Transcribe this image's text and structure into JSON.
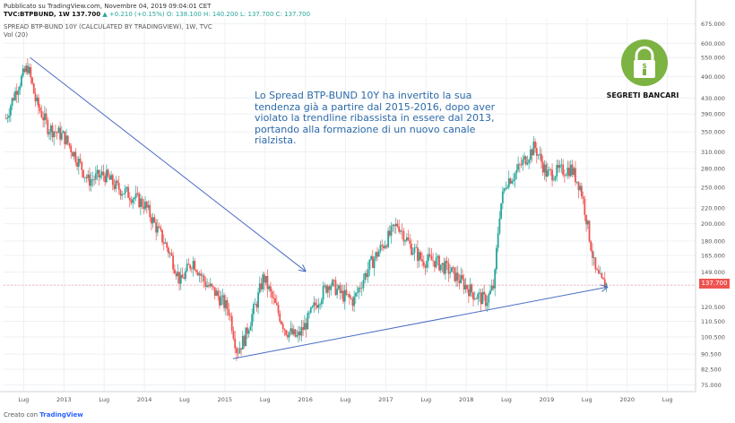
{
  "header": {
    "published": "Pubblicato su TradingView.com, Novembre 04, 2019 09:04:01 CET",
    "symbol_line_prefix": "TVC:BTPBUND, 1W 137.700",
    "change": "▲ +0.210 (+0.15%)",
    "ohlc": "O: 138.100 H: 140.200 L: 137.700 C: 137.700",
    "study_title": "SPREAD BTP-BUND 10Y (CALCULATED BY TRADINGVIEW), 1W, TVC",
    "volume_label": "Vol (20)"
  },
  "annotation": {
    "text": "Lo Spread BTP-BUND 10Y ha invertito la sua tendenza già a partire dal 2015-2016, dopo aver violato la trendline ribassista in essere dal 2013, portando alla formazione di un nuovo canale rialzista."
  },
  "brand": {
    "name": "SEGRETI BANCARI",
    "logo_icon": "padlock-dollar-icon",
    "logo_color": "#7cb342"
  },
  "footer": {
    "prefix": "Creato con",
    "brand": "TradingView"
  },
  "last_price": "137.700",
  "colors": {
    "up": "#26a69a",
    "down": "#ef5350",
    "trendline": "#4a6cc4",
    "grid": "#eef0f3",
    "axis_text": "#555555"
  },
  "chart_data": {
    "type": "candlestick",
    "scale": "log",
    "ylim": [
      72,
      700
    ],
    "y_ticks": [
      "75.000",
      "82.500",
      "90.500",
      "100.500",
      "110.500",
      "120.500",
      "137.700",
      "149.000",
      "165.000",
      "180.000",
      "200.000",
      "220.000",
      "250.000",
      "280.000",
      "310.000",
      "350.000",
      "390.000",
      "430.000",
      "490.000",
      "550.000",
      "600.000",
      "675.000"
    ],
    "x_ticks": [
      "Lug",
      "2013",
      "Lug",
      "2014",
      "Lug",
      "2015",
      "Lug",
      "2016",
      "Lug",
      "2017",
      "Lug",
      "2018",
      "Lug",
      "2019",
      "Lug",
      "2020",
      "Lug"
    ],
    "x_range": [
      2012.25,
      2020.85
    ],
    "x_tick_values": [
      2012.5,
      2013.0,
      2013.5,
      2014.0,
      2014.5,
      2015.0,
      2015.5,
      2016.0,
      2016.5,
      2017.0,
      2017.5,
      2018.0,
      2018.5,
      2019.0,
      2019.5,
      2020.0,
      2020.5
    ],
    "price_path": [
      [
        2012.28,
        380
      ],
      [
        2012.42,
        460
      ],
      [
        2012.55,
        520
      ],
      [
        2012.65,
        420
      ],
      [
        2012.8,
        360
      ],
      [
        2013.0,
        340
      ],
      [
        2013.15,
        300
      ],
      [
        2013.3,
        260
      ],
      [
        2013.5,
        270
      ],
      [
        2013.65,
        250
      ],
      [
        2013.8,
        240
      ],
      [
        2014.0,
        225
      ],
      [
        2014.15,
        195
      ],
      [
        2014.3,
        170
      ],
      [
        2014.45,
        140
      ],
      [
        2014.6,
        160
      ],
      [
        2014.75,
        140
      ],
      [
        2014.9,
        130
      ],
      [
        2015.05,
        118
      ],
      [
        2015.15,
        92
      ],
      [
        2015.25,
        100
      ],
      [
        2015.4,
        125
      ],
      [
        2015.48,
        145
      ],
      [
        2015.6,
        125
      ],
      [
        2015.75,
        105
      ],
      [
        2015.9,
        100
      ],
      [
        2016.0,
        108
      ],
      [
        2016.15,
        125
      ],
      [
        2016.3,
        140
      ],
      [
        2016.45,
        130
      ],
      [
        2016.6,
        125
      ],
      [
        2016.8,
        155
      ],
      [
        2017.0,
        180
      ],
      [
        2017.15,
        200
      ],
      [
        2017.3,
        175
      ],
      [
        2017.45,
        160
      ],
      [
        2017.6,
        160
      ],
      [
        2017.8,
        150
      ],
      [
        2017.95,
        140
      ],
      [
        2018.1,
        130
      ],
      [
        2018.25,
        125
      ],
      [
        2018.35,
        138
      ],
      [
        2018.42,
        220
      ],
      [
        2018.5,
        260
      ],
      [
        2018.6,
        270
      ],
      [
        2018.75,
        300
      ],
      [
        2018.85,
        320
      ],
      [
        2019.0,
        270
      ],
      [
        2019.15,
        275
      ],
      [
        2019.3,
        280
      ],
      [
        2019.42,
        250
      ],
      [
        2019.52,
        190
      ],
      [
        2019.6,
        150
      ],
      [
        2019.68,
        140
      ],
      [
        2019.75,
        137.7
      ]
    ],
    "trendlines": [
      {
        "x": [
          2012.58,
          2016.0
        ],
        "y": [
          550,
          150
        ]
      },
      {
        "x": [
          2015.1,
          2019.75
        ],
        "y": [
          88,
          136
        ]
      }
    ]
  }
}
